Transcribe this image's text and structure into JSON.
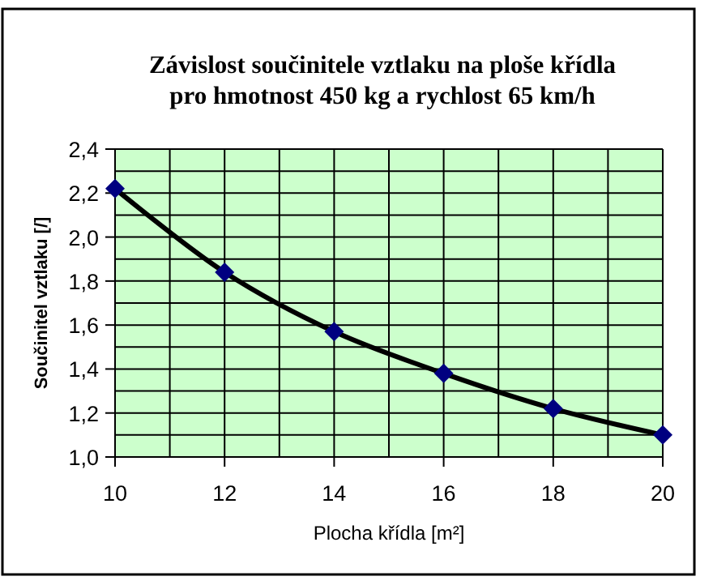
{
  "chart_data": {
    "type": "line",
    "title": "Závislost součinitele vztlaku na ploše křídla\npro hmotnost 450 kg a rychlost 65 km/h",
    "xlabel": "Plocha křídla [m²]",
    "ylabel": "Součinitel vztlaku [/]",
    "x": [
      10,
      12,
      14,
      16,
      18,
      20
    ],
    "series": [
      {
        "color": "#000000",
        "values": [
          2.22,
          1.84,
          1.57,
          1.38,
          1.22,
          1.1
        ],
        "colors": [
          "#000080",
          "#000080",
          "#000080",
          "#000080",
          "#000080",
          "#000080"
        ]
      }
    ],
    "xlim": [
      10,
      20
    ],
    "xticks": [
      10,
      {
        "value": 11,
        "label": null
      },
      12,
      {
        "value": 13,
        "label": null
      },
      14,
      {
        "value": 15,
        "label": null
      },
      16,
      {
        "value": 17,
        "label": null
      },
      18,
      {
        "value": 19,
        "label": null
      },
      20
    ],
    "ylim": [
      1.0,
      2.4
    ],
    "yticks": [
      {
        "value": 1.0,
        "label": "1,0"
      },
      {
        "value": 1.1,
        "label": null
      },
      {
        "value": 1.2,
        "label": "1,2"
      },
      {
        "value": 1.3,
        "label": null
      },
      {
        "value": 1.4,
        "label": "1,4"
      },
      {
        "value": 1.5,
        "label": null
      },
      {
        "value": 1.6,
        "label": "1,6"
      },
      {
        "value": 1.7,
        "label": null
      },
      {
        "value": 1.8,
        "label": "1,8"
      },
      {
        "value": 1.9,
        "label": null
      },
      {
        "value": 2.0,
        "label": "2,0"
      },
      {
        "value": 2.1,
        "label": null
      },
      {
        "value": 2.2,
        "label": "2,2"
      },
      {
        "value": 2.3,
        "label": null
      },
      {
        "value": 2.4,
        "label": "2,4"
      }
    ],
    "grid": true,
    "marker": "diamond",
    "line_style": "solid"
  }
}
